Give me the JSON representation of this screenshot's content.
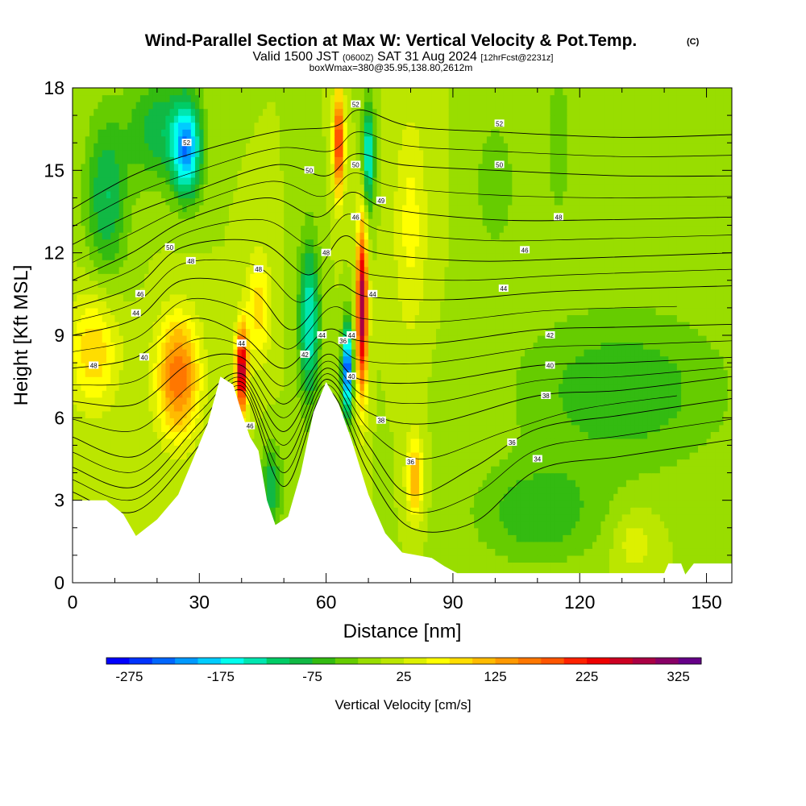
{
  "title": "Wind-Parallel Section at Max W: Vertical Velocity & Pot.Temp.",
  "copyright_mark": "(C)",
  "subtitle": {
    "part1": "Valid 1500 JST",
    "part2": "(0600Z)",
    "part3": "SAT 31 Aug 2024",
    "part4": "[12hrFcst@2231z]"
  },
  "box_info": "boxWmax=380@35.95,138.80,2612m",
  "chart_data": {
    "type": "heatmap",
    "xlabel": "Distance [nm]",
    "ylabel": "Height [Kft MSL]",
    "xlim": [
      0,
      156
    ],
    "ylim": [
      0,
      18
    ],
    "x_ticks": [
      0,
      30,
      60,
      90,
      120,
      150
    ],
    "x_tick_labels": [
      "0",
      "30",
      "60",
      "90",
      "120",
      "150"
    ],
    "y_ticks": [
      0,
      3,
      6,
      9,
      12,
      15,
      18
    ],
    "y_tick_labels": [
      "0",
      "3",
      "6",
      "9",
      "12",
      "15",
      "18"
    ],
    "colorbar": {
      "title": "Vertical Velocity [cm/s]",
      "min": -300,
      "max": 350,
      "tick_values": [
        -275,
        -175,
        -75,
        25,
        125,
        225,
        325
      ],
      "tick_labels": [
        "-275",
        "-175",
        "-75",
        "25",
        "125",
        "225",
        "325"
      ],
      "colors": [
        "#0000ff",
        "#0033ff",
        "#0066ff",
        "#0099ff",
        "#00ccff",
        "#00ffee",
        "#00e6b0",
        "#00cc66",
        "#11b844",
        "#33bb11",
        "#66cc00",
        "#99dd00",
        "#bbe600",
        "#ddf000",
        "#ffff00",
        "#ffdd00",
        "#ffbb00",
        "#ff9900",
        "#ff7700",
        "#ff5500",
        "#ff2200",
        "#ee0000",
        "#cc0022",
        "#aa0044",
        "#880066",
        "#660088"
      ]
    },
    "terrain_kft": [
      [
        0,
        3.0
      ],
      [
        8,
        3.0
      ],
      [
        12,
        2.5
      ],
      [
        15,
        1.7
      ],
      [
        20,
        2.3
      ],
      [
        25,
        3.2
      ],
      [
        28,
        4.3
      ],
      [
        32,
        5.8
      ],
      [
        35,
        7.5
      ],
      [
        38,
        7.2
      ],
      [
        40,
        6.2
      ],
      [
        42,
        5.3
      ],
      [
        44,
        4.8
      ],
      [
        46,
        3.0
      ],
      [
        48,
        2.1
      ],
      [
        51,
        2.4
      ],
      [
        54,
        4.0
      ],
      [
        57,
        6.2
      ],
      [
        60,
        7.3
      ],
      [
        63,
        6.5
      ],
      [
        66,
        5.2
      ],
      [
        70,
        3.2
      ],
      [
        74,
        1.8
      ],
      [
        78,
        1.1
      ],
      [
        85,
        0.9
      ],
      [
        88,
        0.6
      ],
      [
        91,
        0.35
      ],
      [
        100,
        0.35
      ],
      [
        120,
        0.35
      ],
      [
        140,
        0.35
      ],
      [
        141,
        0.7
      ],
      [
        144,
        0.7
      ],
      [
        145,
        0.3
      ],
      [
        147,
        0.7
      ],
      [
        156,
        0.7
      ]
    ],
    "w_features": [
      {
        "x": 5,
        "y": 8.5,
        "w": 95,
        "sx": 6,
        "sy": 2.2
      },
      {
        "x": 25,
        "y": 7.5,
        "w": 175,
        "sx": 5,
        "sy": 2.2
      },
      {
        "x": 40,
        "y": 7.7,
        "w": 290,
        "sx": 1.4,
        "sy": 1.6
      },
      {
        "x": 44,
        "y": 10.0,
        "w": 90,
        "sx": 3,
        "sy": 2
      },
      {
        "x": 27,
        "y": 15.8,
        "w": -200,
        "sx": 3.5,
        "sy": 1.8
      },
      {
        "x": 20,
        "y": 16.5,
        "w": -90,
        "sx": 7,
        "sy": 2
      },
      {
        "x": 56,
        "y": 9.5,
        "w": -150,
        "sx": 2.5,
        "sy": 3
      },
      {
        "x": 65,
        "y": 7.8,
        "w": -270,
        "sx": 1.2,
        "sy": 1.6
      },
      {
        "x": 68.5,
        "y": 10.0,
        "w": 300,
        "sx": 1.3,
        "sy": 3.2
      },
      {
        "x": 63,
        "y": 16.0,
        "w": 220,
        "sx": 1.3,
        "sy": 2
      },
      {
        "x": 70,
        "y": 15.5,
        "w": -160,
        "sx": 1.5,
        "sy": 2
      },
      {
        "x": 81,
        "y": 3.8,
        "w": 130,
        "sx": 2,
        "sy": 1.5
      },
      {
        "x": 47,
        "y": 3.5,
        "w": -100,
        "sx": 2.5,
        "sy": 1.5
      },
      {
        "x": 80,
        "y": 13.0,
        "w": 60,
        "sx": 4,
        "sy": 4
      },
      {
        "x": 130,
        "y": 7.0,
        "w": -70,
        "sx": 25,
        "sy": 3
      },
      {
        "x": 110,
        "y": 2.5,
        "w": -70,
        "sx": 15,
        "sy": 1.8
      },
      {
        "x": 100,
        "y": 14.5,
        "w": -45,
        "sx": 5,
        "sy": 2.5
      },
      {
        "x": 115,
        "y": 16.0,
        "w": -45,
        "sx": 3,
        "sy": 3
      },
      {
        "x": 133,
        "y": 1.5,
        "w": 45,
        "sx": 5,
        "sy": 1.2
      },
      {
        "x": 8,
        "y": 14.0,
        "w": -100,
        "sx": 5,
        "sy": 3
      }
    ],
    "theta_contours": [
      {
        "theta": 34,
        "points": [
          [
            0,
            3.3
          ],
          [
            15,
            2.6
          ],
          [
            30,
            5.0
          ],
          [
            40,
            7.0
          ],
          [
            50,
            3.5
          ],
          [
            60,
            7.0
          ],
          [
            70,
            4.0
          ],
          [
            80,
            2.0
          ],
          [
            95,
            2.2
          ],
          [
            110,
            4.1
          ],
          [
            130,
            4.6
          ],
          [
            156,
            5.2
          ]
        ]
      },
      {
        "theta": 36,
        "points": [
          [
            0,
            4.2
          ],
          [
            15,
            3.5
          ],
          [
            30,
            5.8
          ],
          [
            40,
            7.3
          ],
          [
            50,
            4.5
          ],
          [
            60,
            7.4
          ],
          [
            70,
            5.0
          ],
          [
            80,
            3.2
          ],
          [
            95,
            4.2
          ],
          [
            110,
            5.6
          ],
          [
            130,
            6.1
          ],
          [
            156,
            6.7
          ]
        ]
      },
      {
        "theta": 38,
        "points": [
          [
            0,
            5.3
          ],
          [
            15,
            4.6
          ],
          [
            30,
            6.6
          ],
          [
            40,
            7.6
          ],
          [
            50,
            5.5
          ],
          [
            60,
            7.8
          ],
          [
            70,
            6.2
          ],
          [
            85,
            5.8
          ],
          [
            110,
            6.8
          ],
          [
            130,
            7.0
          ],
          [
            156,
            7.5
          ]
        ]
      },
      {
        "theta": 40,
        "points": [
          [
            0,
            6.6
          ],
          [
            15,
            6.5
          ],
          [
            28,
            8.0
          ],
          [
            40,
            8.2
          ],
          [
            50,
            6.5
          ],
          [
            60,
            8.3
          ],
          [
            68,
            7.4
          ],
          [
            85,
            7.3
          ],
          [
            110,
            7.9
          ],
          [
            130,
            8.0
          ],
          [
            156,
            8.2
          ]
        ]
      },
      {
        "theta": 42,
        "points": [
          [
            0,
            7.8
          ],
          [
            15,
            8.2
          ],
          [
            28,
            9.6
          ],
          [
            40,
            9.0
          ],
          [
            50,
            7.8
          ],
          [
            60,
            9.2
          ],
          [
            68,
            8.8
          ],
          [
            85,
            8.7
          ],
          [
            110,
            9.2
          ],
          [
            130,
            9.3
          ],
          [
            156,
            9.4
          ]
        ]
      },
      {
        "theta": 44,
        "points": [
          [
            0,
            9.0
          ],
          [
            15,
            9.6
          ],
          [
            26,
            11.0
          ],
          [
            42,
            10.7
          ],
          [
            52,
            9.2
          ],
          [
            62,
            10.8
          ],
          [
            70,
            10.4
          ],
          [
            90,
            10.3
          ],
          [
            115,
            10.6
          ],
          [
            156,
            10.8
          ]
        ]
      },
      {
        "theta": 46,
        "points": [
          [
            0,
            10.0
          ],
          [
            15,
            10.8
          ],
          [
            26,
            12.2
          ],
          [
            44,
            12.4
          ],
          [
            56,
            11.2
          ],
          [
            64,
            12.6
          ],
          [
            72,
            12.0
          ],
          [
            95,
            11.7
          ],
          [
            120,
            11.8
          ],
          [
            156,
            12.0
          ]
        ]
      },
      {
        "theta": 48,
        "points": [
          [
            0,
            11.0
          ],
          [
            14,
            12.0
          ],
          [
            27,
            13.2
          ],
          [
            46,
            14.0
          ],
          [
            58,
            13.3
          ],
          [
            66,
            14.2
          ],
          [
            75,
            13.6
          ],
          [
            100,
            13.2
          ],
          [
            125,
            13.2
          ],
          [
            156,
            13.3
          ]
        ]
      },
      {
        "theta": 50,
        "points": [
          [
            0,
            12.3
          ],
          [
            14,
            13.4
          ],
          [
            28,
            14.2
          ],
          [
            48,
            15.2
          ],
          [
            60,
            14.8
          ],
          [
            67,
            15.6
          ],
          [
            78,
            15.2
          ],
          [
            100,
            15.0
          ],
          [
            130,
            14.8
          ],
          [
            156,
            14.8
          ]
        ]
      },
      {
        "theta": 52,
        "points": [
          [
            0,
            13.6
          ],
          [
            14,
            14.8
          ],
          [
            28,
            15.6
          ],
          [
            48,
            16.4
          ],
          [
            62,
            16.6
          ],
          [
            68,
            17.2
          ],
          [
            80,
            16.6
          ],
          [
            100,
            16.4
          ],
          [
            130,
            16.2
          ],
          [
            156,
            16.3
          ]
        ]
      }
    ],
    "contour_labels": [
      {
        "x": 5,
        "y": 7.9,
        "text": "48"
      },
      {
        "x": 17,
        "y": 8.2,
        "text": "40"
      },
      {
        "x": 15,
        "y": 9.8,
        "text": "44"
      },
      {
        "x": 16,
        "y": 10.5,
        "text": "46"
      },
      {
        "x": 23,
        "y": 12.2,
        "text": "50"
      },
      {
        "x": 28,
        "y": 11.7,
        "text": "48"
      },
      {
        "x": 27,
        "y": 16.0,
        "text": "52"
      },
      {
        "x": 40,
        "y": 8.7,
        "text": "44"
      },
      {
        "x": 42,
        "y": 5.7,
        "text": "46"
      },
      {
        "x": 44,
        "y": 11.4,
        "text": "48"
      },
      {
        "x": 55,
        "y": 8.3,
        "text": "42"
      },
      {
        "x": 56,
        "y": 15.0,
        "text": "50"
      },
      {
        "x": 60,
        "y": 12.0,
        "text": "48"
      },
      {
        "x": 59,
        "y": 9.0,
        "text": "44"
      },
      {
        "x": 64,
        "y": 8.8,
        "text": "36"
      },
      {
        "x": 66,
        "y": 9.0,
        "text": "44"
      },
      {
        "x": 66,
        "y": 7.5,
        "text": "40"
      },
      {
        "x": 67,
        "y": 13.3,
        "text": "46"
      },
      {
        "x": 67,
        "y": 15.2,
        "text": "50"
      },
      {
        "x": 67,
        "y": 17.4,
        "text": "52"
      },
      {
        "x": 71,
        "y": 10.5,
        "text": "44"
      },
      {
        "x": 73,
        "y": 13.9,
        "text": "49"
      },
      {
        "x": 73,
        "y": 5.9,
        "text": "38"
      },
      {
        "x": 80,
        "y": 4.4,
        "text": "36"
      },
      {
        "x": 101,
        "y": 16.7,
        "text": "52"
      },
      {
        "x": 101,
        "y": 15.2,
        "text": "50"
      },
      {
        "x": 104,
        "y": 5.1,
        "text": "36"
      },
      {
        "x": 110,
        "y": 4.5,
        "text": "34"
      },
      {
        "x": 112,
        "y": 6.8,
        "text": "38"
      },
      {
        "x": 113,
        "y": 7.9,
        "text": "40"
      },
      {
        "x": 113,
        "y": 9.0,
        "text": "42"
      },
      {
        "x": 115,
        "y": 13.3,
        "text": "48"
      },
      {
        "x": 107,
        "y": 12.1,
        "text": "46"
      },
      {
        "x": 102,
        "y": 10.7,
        "text": "44"
      }
    ]
  }
}
